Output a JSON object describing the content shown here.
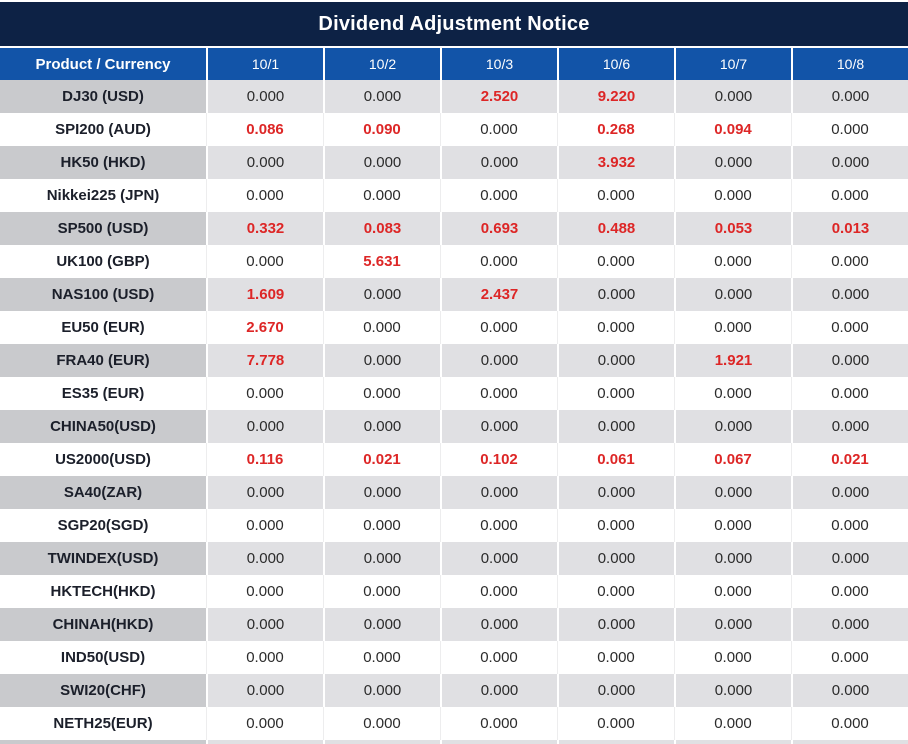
{
  "title": "Dividend Adjustment Notice",
  "colors": {
    "title_bg": "#0d2245",
    "header_bg": "#1254a8",
    "alt_row_label_bg": "#c9cacd",
    "alt_row_value_bg": "#e0e0e3",
    "negative_value_red": "#dd2626"
  },
  "table": {
    "header": [
      "Product / Currency",
      "10/1",
      "10/2",
      "10/3",
      "10/6",
      "10/7",
      "10/8"
    ],
    "rows": [
      {
        "product": "DJ30 (USD)",
        "values": [
          "0.000",
          "0.000",
          "2.520",
          "9.220",
          "0.000",
          "0.000"
        ],
        "red": [
          false,
          false,
          true,
          true,
          false,
          false
        ]
      },
      {
        "product": "SPI200 (AUD)",
        "values": [
          "0.086",
          "0.090",
          "0.000",
          "0.268",
          "0.094",
          "0.000"
        ],
        "red": [
          true,
          true,
          false,
          true,
          true,
          false
        ]
      },
      {
        "product": "HK50 (HKD)",
        "values": [
          "0.000",
          "0.000",
          "0.000",
          "3.932",
          "0.000",
          "0.000"
        ],
        "red": [
          false,
          false,
          false,
          true,
          false,
          false
        ]
      },
      {
        "product": "Nikkei225 (JPN)",
        "values": [
          "0.000",
          "0.000",
          "0.000",
          "0.000",
          "0.000",
          "0.000"
        ],
        "red": [
          false,
          false,
          false,
          false,
          false,
          false
        ]
      },
      {
        "product": "SP500 (USD)",
        "values": [
          "0.332",
          "0.083",
          "0.693",
          "0.488",
          "0.053",
          "0.013"
        ],
        "red": [
          true,
          true,
          true,
          true,
          true,
          true
        ]
      },
      {
        "product": "UK100 (GBP)",
        "values": [
          "0.000",
          "5.631",
          "0.000",
          "0.000",
          "0.000",
          "0.000"
        ],
        "red": [
          false,
          true,
          false,
          false,
          false,
          false
        ]
      },
      {
        "product": "NAS100 (USD)",
        "values": [
          "1.609",
          "0.000",
          "2.437",
          "0.000",
          "0.000",
          "0.000"
        ],
        "red": [
          true,
          false,
          true,
          false,
          false,
          false
        ]
      },
      {
        "product": "EU50 (EUR)",
        "values": [
          "2.670",
          "0.000",
          "0.000",
          "0.000",
          "0.000",
          "0.000"
        ],
        "red": [
          true,
          false,
          false,
          false,
          false,
          false
        ]
      },
      {
        "product": "FRA40 (EUR)",
        "values": [
          "7.778",
          "0.000",
          "0.000",
          "0.000",
          "1.921",
          "0.000"
        ],
        "red": [
          true,
          false,
          false,
          false,
          true,
          false
        ]
      },
      {
        "product": "ES35 (EUR)",
        "values": [
          "0.000",
          "0.000",
          "0.000",
          "0.000",
          "0.000",
          "0.000"
        ],
        "red": [
          false,
          false,
          false,
          false,
          false,
          false
        ]
      },
      {
        "product": "CHINA50(USD)",
        "values": [
          "0.000",
          "0.000",
          "0.000",
          "0.000",
          "0.000",
          "0.000"
        ],
        "red": [
          false,
          false,
          false,
          false,
          false,
          false
        ]
      },
      {
        "product": "US2000(USD)",
        "values": [
          "0.116",
          "0.021",
          "0.102",
          "0.061",
          "0.067",
          "0.021"
        ],
        "red": [
          true,
          true,
          true,
          true,
          true,
          true
        ]
      },
      {
        "product": "SA40(ZAR)",
        "values": [
          "0.000",
          "0.000",
          "0.000",
          "0.000",
          "0.000",
          "0.000"
        ],
        "red": [
          false,
          false,
          false,
          false,
          false,
          false
        ]
      },
      {
        "product": "SGP20(SGD)",
        "values": [
          "0.000",
          "0.000",
          "0.000",
          "0.000",
          "0.000",
          "0.000"
        ],
        "red": [
          false,
          false,
          false,
          false,
          false,
          false
        ]
      },
      {
        "product": "TWINDEX(USD)",
        "values": [
          "0.000",
          "0.000",
          "0.000",
          "0.000",
          "0.000",
          "0.000"
        ],
        "red": [
          false,
          false,
          false,
          false,
          false,
          false
        ]
      },
      {
        "product": "HKTECH(HKD)",
        "values": [
          "0.000",
          "0.000",
          "0.000",
          "0.000",
          "0.000",
          "0.000"
        ],
        "red": [
          false,
          false,
          false,
          false,
          false,
          false
        ]
      },
      {
        "product": "CHINAH(HKD)",
        "values": [
          "0.000",
          "0.000",
          "0.000",
          "0.000",
          "0.000",
          "0.000"
        ],
        "red": [
          false,
          false,
          false,
          false,
          false,
          false
        ]
      },
      {
        "product": "IND50(USD)",
        "values": [
          "0.000",
          "0.000",
          "0.000",
          "0.000",
          "0.000",
          "0.000"
        ],
        "red": [
          false,
          false,
          false,
          false,
          false,
          false
        ]
      },
      {
        "product": "SWI20(CHF)",
        "values": [
          "0.000",
          "0.000",
          "0.000",
          "0.000",
          "0.000",
          "0.000"
        ],
        "red": [
          false,
          false,
          false,
          false,
          false,
          false
        ]
      },
      {
        "product": "NETH25(EUR)",
        "values": [
          "0.000",
          "0.000",
          "0.000",
          "0.000",
          "0.000",
          "0.000"
        ],
        "red": [
          false,
          false,
          false,
          false,
          false,
          false
        ]
      }
    ]
  }
}
